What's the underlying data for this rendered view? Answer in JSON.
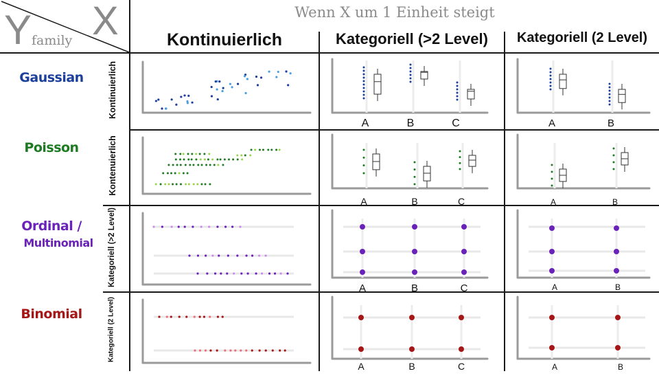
{
  "corner": {
    "y_glyph": "Y",
    "x_glyph": "X",
    "family_label": "family"
  },
  "title": "Wenn X um 1 Einheit steigt",
  "columns": [
    {
      "label": "Kontinuierlich"
    },
    {
      "label": "Kategoriell (>2 Level)"
    },
    {
      "label": "Kategoriell (2 Level)"
    }
  ],
  "rows": [
    {
      "family": "Gaussian",
      "family_sub": "",
      "y_type": "Kontinuierlich",
      "color": "#1b3f9a"
    },
    {
      "family": "Poisson",
      "family_sub": "",
      "y_type": "Kontenuierlich",
      "color": "#1f7a24"
    },
    {
      "family": "Ordinal /",
      "family_sub": "Multinomial",
      "y_type": "Kategoriell (>2 Level)",
      "color": "#6a22b8"
    },
    {
      "family": "Binomial",
      "family_sub": "",
      "y_type": "Kategoriell (2 Level)",
      "color": "#a51616"
    }
  ],
  "categories_3": [
    "A",
    "B",
    "C"
  ],
  "categories_2": [
    "A",
    "B"
  ]
}
